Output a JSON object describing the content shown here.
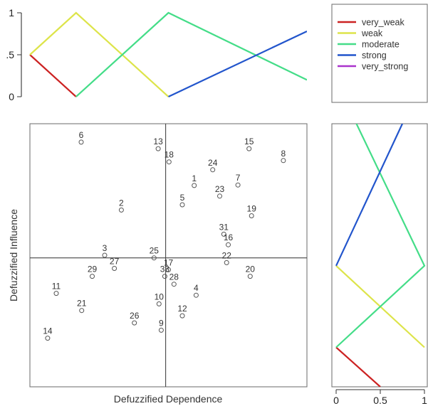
{
  "chart_data": [
    {
      "type": "line",
      "panel": "top-membership",
      "x_range": [
        0,
        1
      ],
      "ylim": [
        0,
        1
      ],
      "y_ticks": [
        "0",
        ".5",
        "1"
      ],
      "series": [
        {
          "name": "very_weak",
          "color": "#cc2222",
          "x": [
            0,
            0.25
          ],
          "y": [
            0.5,
            0
          ]
        },
        {
          "name": "weak",
          "color": "#dde44a",
          "x": [
            0,
            0.25,
            0.75
          ],
          "y": [
            0.5,
            1,
            0
          ]
        },
        {
          "name": "moderate",
          "color": "#44dd88",
          "x": [
            0.25,
            0.75,
            1.5
          ],
          "y": [
            0,
            1,
            0.2
          ]
        },
        {
          "name": "strong",
          "color": "#2255cc",
          "x": [
            0.75,
            1.5
          ],
          "y": [
            0,
            0.78
          ]
        }
      ]
    },
    {
      "type": "scatter",
      "panel": "main",
      "xlabel": "Defuzzified Dependence",
      "ylabel": "Defuzzified Influence",
      "x_range": [
        0,
        1
      ],
      "y_range": [
        0,
        1
      ],
      "quadrant_lines": {
        "x": 0.49,
        "y": 0.49
      },
      "points": [
        {
          "label": "6",
          "x": 0.185,
          "y": 0.93
        },
        {
          "label": "13",
          "x": 0.463,
          "y": 0.905
        },
        {
          "label": "18",
          "x": 0.502,
          "y": 0.855
        },
        {
          "label": "15",
          "x": 0.791,
          "y": 0.905
        },
        {
          "label": "8",
          "x": 0.915,
          "y": 0.86
        },
        {
          "label": "24",
          "x": 0.66,
          "y": 0.825
        },
        {
          "label": "1",
          "x": 0.593,
          "y": 0.765
        },
        {
          "label": "7",
          "x": 0.751,
          "y": 0.767
        },
        {
          "label": "23",
          "x": 0.685,
          "y": 0.725
        },
        {
          "label": "5",
          "x": 0.55,
          "y": 0.692
        },
        {
          "label": "2",
          "x": 0.33,
          "y": 0.672
        },
        {
          "label": "19",
          "x": 0.8,
          "y": 0.65
        },
        {
          "label": "31",
          "x": 0.7,
          "y": 0.58
        },
        {
          "label": "16",
          "x": 0.716,
          "y": 0.54
        },
        {
          "label": "3",
          "x": 0.27,
          "y": 0.5
        },
        {
          "label": "25",
          "x": 0.448,
          "y": 0.49
        },
        {
          "label": "22",
          "x": 0.71,
          "y": 0.472
        },
        {
          "label": "17",
          "x": 0.5,
          "y": 0.445
        },
        {
          "label": "27",
          "x": 0.305,
          "y": 0.45
        },
        {
          "label": "29",
          "x": 0.225,
          "y": 0.42
        },
        {
          "label": "33",
          "x": 0.487,
          "y": 0.42
        },
        {
          "label": "20",
          "x": 0.795,
          "y": 0.42
        },
        {
          "label": "28",
          "x": 0.52,
          "y": 0.39
        },
        {
          "label": "11",
          "x": 0.095,
          "y": 0.355
        },
        {
          "label": "4",
          "x": 0.6,
          "y": 0.348
        },
        {
          "label": "10",
          "x": 0.466,
          "y": 0.315
        },
        {
          "label": "21",
          "x": 0.187,
          "y": 0.29
        },
        {
          "label": "12",
          "x": 0.55,
          "y": 0.27
        },
        {
          "label": "26",
          "x": 0.377,
          "y": 0.243
        },
        {
          "label": "9",
          "x": 0.474,
          "y": 0.215
        },
        {
          "label": "14",
          "x": 0.064,
          "y": 0.185
        }
      ]
    },
    {
      "type": "line",
      "panel": "right-membership",
      "xlim": [
        0,
        1
      ],
      "x_ticks": [
        "0",
        "0.5",
        "1"
      ],
      "series": [
        {
          "name": "very_weak",
          "color": "#cc2222",
          "x": [
            0,
            0.5
          ],
          "y": [
            0.15,
            0
          ]
        },
        {
          "name": "weak",
          "color": "#dde44a",
          "x": [
            0,
            1,
            0
          ],
          "y": [
            0.46,
            0.15,
            0.46
          ],
          "note_shape": "zigzag"
        },
        {
          "name": "moderate",
          "color": "#44dd88",
          "x": [
            0,
            1,
            0.23
          ],
          "y": [
            0.15,
            0.46,
            1.0
          ]
        },
        {
          "name": "strong",
          "color": "#2255cc",
          "x": [
            0,
            0.75
          ],
          "y": [
            0.46,
            1.0
          ]
        }
      ]
    }
  ],
  "legend": {
    "items": [
      {
        "name": "very_weak",
        "color": "#cc2222"
      },
      {
        "name": "weak",
        "color": "#dde44a"
      },
      {
        "name": "moderate",
        "color": "#44dd88"
      },
      {
        "name": "strong",
        "color": "#2255cc"
      },
      {
        "name": "very_strong",
        "color": "#aa33cc"
      }
    ]
  }
}
